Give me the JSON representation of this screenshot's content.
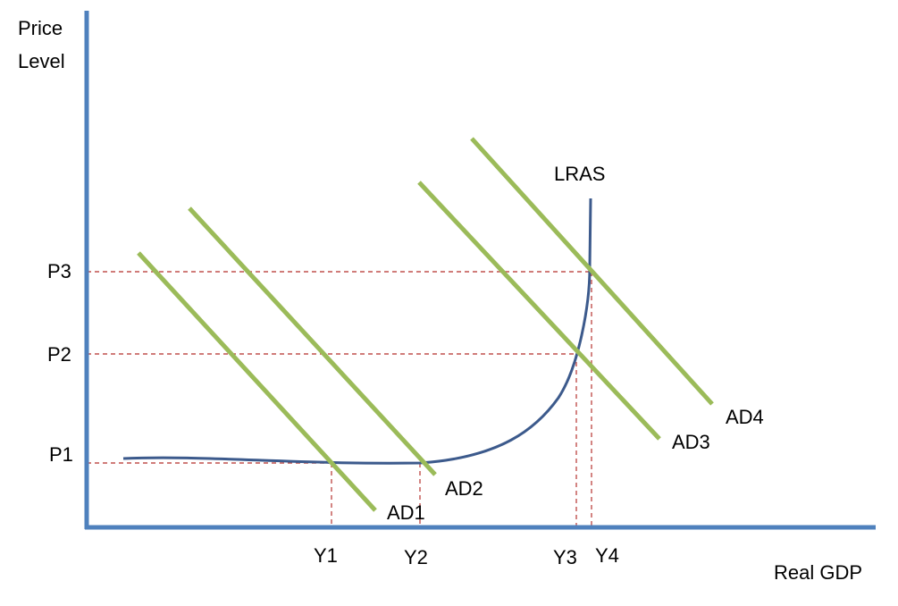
{
  "axes": {
    "y_label_line1": "Price",
    "y_label_line2": "Level",
    "x_label": "Real GDP"
  },
  "price_levels": [
    "P1",
    "P2",
    "P3"
  ],
  "output_levels": [
    "Y1",
    "Y2",
    "Y3",
    "Y4"
  ],
  "curves": {
    "lras": "LRAS",
    "ad": [
      "AD1",
      "AD2",
      "AD3",
      "AD4"
    ]
  },
  "colors": {
    "axis": "#4f81bd",
    "ad_lines": "#9bbb59",
    "lras_curve": "#3c5a8c",
    "guides": "#c0504d",
    "text": "#000000"
  }
}
